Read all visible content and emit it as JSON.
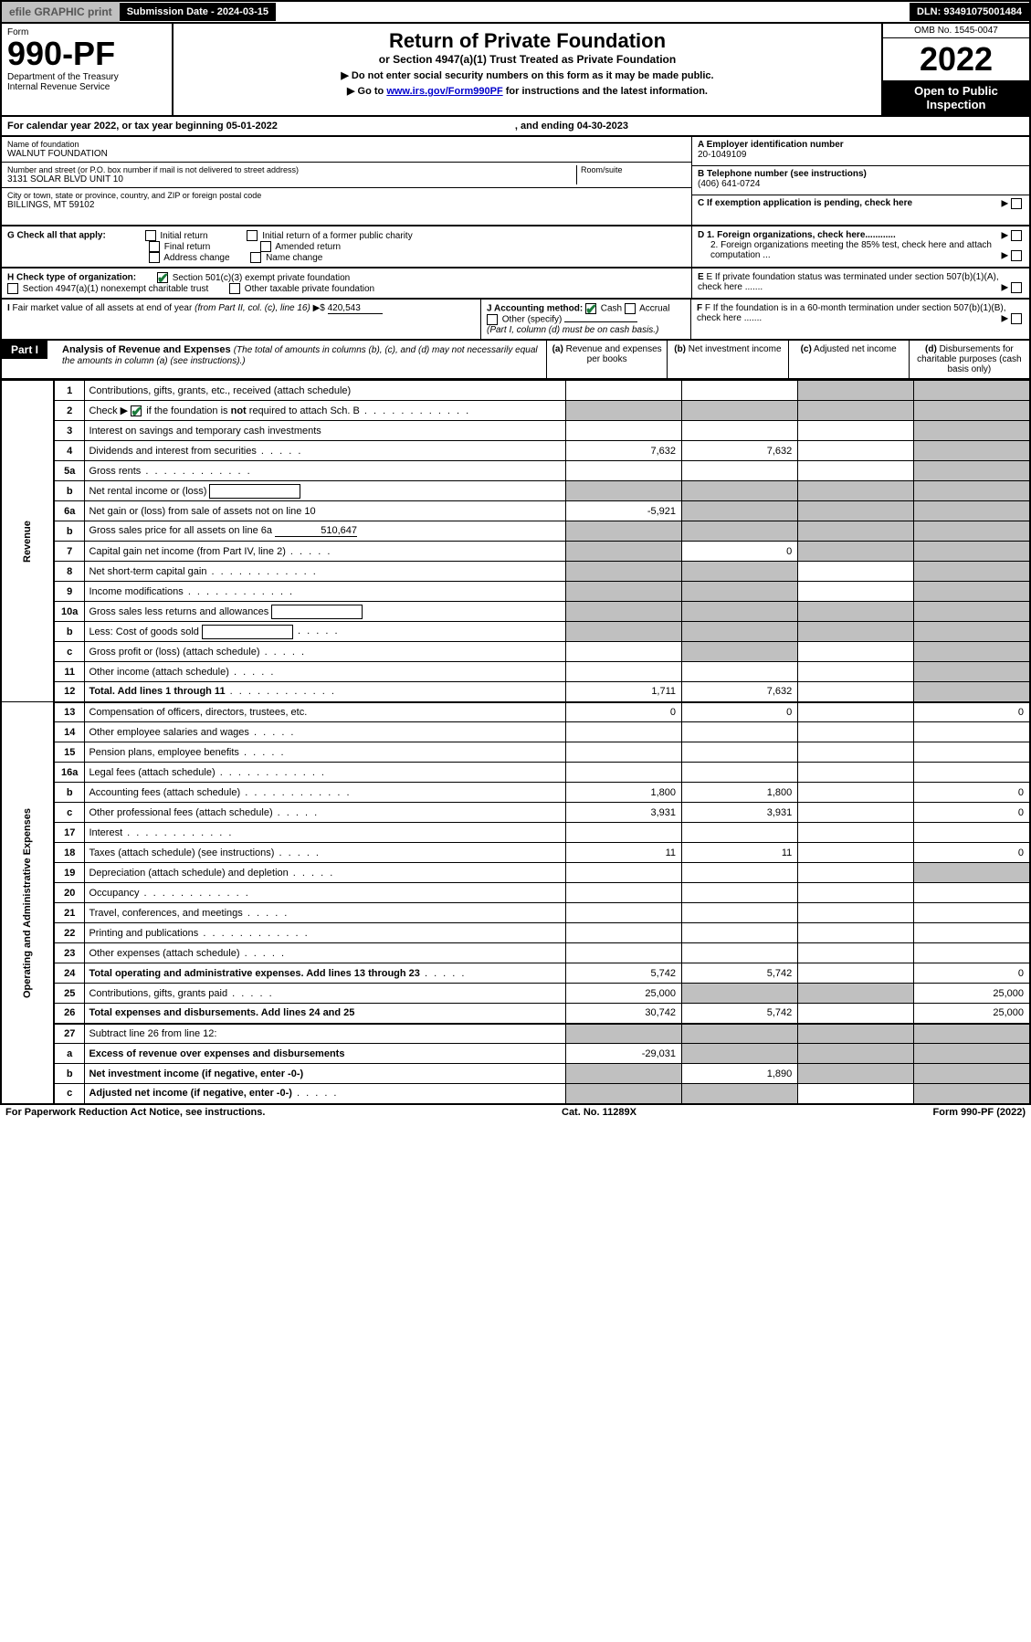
{
  "topbar": {
    "efile": "efile GRAPHIC print",
    "submission": "Submission Date - 2024-03-15",
    "dln": "DLN: 93491075001484"
  },
  "header": {
    "form_label": "Form",
    "form_number": "990-PF",
    "dept": "Department of the Treasury\nInternal Revenue Service",
    "title": "Return of Private Foundation",
    "subtitle": "or Section 4947(a)(1) Trust Treated as Private Foundation",
    "note1": "▶ Do not enter social security numbers on this form as it may be made public.",
    "note2_pre": "▶ Go to ",
    "note2_link": "www.irs.gov/Form990PF",
    "note2_post": " for instructions and the latest information.",
    "omb": "OMB No. 1545-0047",
    "year": "2022",
    "open": "Open to Public Inspection"
  },
  "cal_year": {
    "text": "For calendar year 2022, or tax year beginning 05-01-2022",
    "ending": ", and ending 04-30-2023"
  },
  "info": {
    "name_label": "Name of foundation",
    "name": "WALNUT FOUNDATION",
    "addr_label": "Number and street (or P.O. box number if mail is not delivered to street address)",
    "addr": "3131 SOLAR BLVD UNIT 10",
    "room_label": "Room/suite",
    "city_label": "City or town, state or province, country, and ZIP or foreign postal code",
    "city": "BILLINGS, MT  59102",
    "a_label": "A Employer identification number",
    "a_val": "20-1049109",
    "b_label": "B Telephone number (see instructions)",
    "b_val": "(406) 641-0724",
    "c_label": "C If exemption application is pending, check here"
  },
  "section_g": {
    "label": "G Check all that apply:",
    "o1": "Initial return",
    "o2": "Final return",
    "o3": "Address change",
    "o4": "Initial return of a former public charity",
    "o5": "Amended return",
    "o6": "Name change"
  },
  "section_d": {
    "d1": "D 1. Foreign organizations, check here............",
    "d2": "2. Foreign organizations meeting the 85% test, check here and attach computation ..."
  },
  "section_h": {
    "label": "H Check type of organization:",
    "o1": "Section 501(c)(3) exempt private foundation",
    "o2": "Section 4947(a)(1) nonexempt charitable trust",
    "o3": "Other taxable private foundation"
  },
  "section_e": {
    "text": "E  If private foundation status was terminated under section 507(b)(1)(A), check here ......."
  },
  "section_i": {
    "label": "I Fair market value of all assets at end of year (from Part II, col. (c), line 16) ▶$",
    "value": "420,543"
  },
  "section_j": {
    "label": "J Accounting method:",
    "cash": "Cash",
    "accrual": "Accrual",
    "other": "Other (specify)",
    "note": "(Part I, column (d) must be on cash basis.)"
  },
  "section_f": {
    "text": "F  If the foundation is in a 60-month termination under section 507(b)(1)(B), check here ......."
  },
  "part1": {
    "title": "Part I",
    "heading": "Analysis of Revenue and Expenses",
    "heading_note": "(The total of amounts in columns (b), (c), and (d) may not necessarily equal the amounts in column (a) (see instructions).)",
    "col_a": "(a) Revenue and expenses per books",
    "col_b": "(b) Net investment income",
    "col_c": "(c) Adjusted net income",
    "col_d": "(d) Disbursements for charitable purposes (cash basis only)"
  },
  "side_labels": {
    "revenue": "Revenue",
    "expenses": "Operating and Administrative Expenses"
  },
  "rows": [
    {
      "n": "1",
      "d": "Contributions, gifts, grants, etc., received (attach schedule)",
      "a": "",
      "b": "",
      "c": "g",
      "dd": "g"
    },
    {
      "n": "2",
      "d": "Check ▶ ☑ if the foundation is not required to attach Sch. B",
      "dots": true,
      "a": "g",
      "b": "g",
      "c": "g",
      "dd": "g"
    },
    {
      "n": "3",
      "d": "Interest on savings and temporary cash investments",
      "a": "",
      "b": "",
      "c": "",
      "dd": "g"
    },
    {
      "n": "4",
      "d": "Dividends and interest from securities",
      "dots": "short",
      "a": "7,632",
      "b": "7,632",
      "c": "",
      "dd": "g"
    },
    {
      "n": "5a",
      "d": "Gross rents",
      "dots": true,
      "a": "",
      "b": "",
      "c": "",
      "dd": "g"
    },
    {
      "n": "b",
      "d": "Net rental income or (loss)",
      "box": true,
      "a": "g",
      "b": "g",
      "c": "g",
      "dd": "g"
    },
    {
      "n": "6a",
      "d": "Net gain or (loss) from sale of assets not on line 10",
      "a": "-5,921",
      "b": "g",
      "c": "g",
      "dd": "g"
    },
    {
      "n": "b",
      "d": "Gross sales price for all assets on line 6a",
      "underline": "510,647",
      "a": "g",
      "b": "g",
      "c": "g",
      "dd": "g"
    },
    {
      "n": "7",
      "d": "Capital gain net income (from Part IV, line 2)",
      "dots": "short",
      "a": "g",
      "b": "0",
      "c": "g",
      "dd": "g"
    },
    {
      "n": "8",
      "d": "Net short-term capital gain",
      "dots": true,
      "a": "g",
      "b": "g",
      "c": "",
      "dd": "g"
    },
    {
      "n": "9",
      "d": "Income modifications",
      "dots": true,
      "a": "g",
      "b": "g",
      "c": "",
      "dd": "g"
    },
    {
      "n": "10a",
      "d": "Gross sales less returns and allowances",
      "box": true,
      "a": "g",
      "b": "g",
      "c": "g",
      "dd": "g"
    },
    {
      "n": "b",
      "d": "Less: Cost of goods sold",
      "dots": "short",
      "box": true,
      "a": "g",
      "b": "g",
      "c": "g",
      "dd": "g"
    },
    {
      "n": "c",
      "d": "Gross profit or (loss) (attach schedule)",
      "dots": "short",
      "a": "",
      "b": "g",
      "c": "",
      "dd": "g"
    },
    {
      "n": "11",
      "d": "Other income (attach schedule)",
      "dots": "short",
      "a": "",
      "b": "",
      "c": "",
      "dd": "g"
    },
    {
      "n": "12",
      "d": "Total. Add lines 1 through 11",
      "dots": true,
      "bold": true,
      "a": "1,711",
      "b": "7,632",
      "c": "",
      "dd": "g",
      "thick": true
    },
    {
      "n": "13",
      "d": "Compensation of officers, directors, trustees, etc.",
      "a": "0",
      "b": "0",
      "c": "",
      "dd": "0"
    },
    {
      "n": "14",
      "d": "Other employee salaries and wages",
      "dots": "short",
      "a": "",
      "b": "",
      "c": "",
      "dd": ""
    },
    {
      "n": "15",
      "d": "Pension plans, employee benefits",
      "dots": "short",
      "a": "",
      "b": "",
      "c": "",
      "dd": ""
    },
    {
      "n": "16a",
      "d": "Legal fees (attach schedule)",
      "dots": true,
      "a": "",
      "b": "",
      "c": "",
      "dd": ""
    },
    {
      "n": "b",
      "d": "Accounting fees (attach schedule)",
      "dots": true,
      "a": "1,800",
      "b": "1,800",
      "c": "",
      "dd": "0"
    },
    {
      "n": "c",
      "d": "Other professional fees (attach schedule)",
      "dots": "short",
      "a": "3,931",
      "b": "3,931",
      "c": "",
      "dd": "0"
    },
    {
      "n": "17",
      "d": "Interest",
      "dots": true,
      "a": "",
      "b": "",
      "c": "",
      "dd": ""
    },
    {
      "n": "18",
      "d": "Taxes (attach schedule) (see instructions)",
      "dots": "short",
      "a": "11",
      "b": "11",
      "c": "",
      "dd": "0"
    },
    {
      "n": "19",
      "d": "Depreciation (attach schedule) and depletion",
      "dots": "short",
      "a": "",
      "b": "",
      "c": "",
      "dd": "g"
    },
    {
      "n": "20",
      "d": "Occupancy",
      "dots": true,
      "a": "",
      "b": "",
      "c": "",
      "dd": ""
    },
    {
      "n": "21",
      "d": "Travel, conferences, and meetings",
      "dots": "short",
      "a": "",
      "b": "",
      "c": "",
      "dd": ""
    },
    {
      "n": "22",
      "d": "Printing and publications",
      "dots": true,
      "a": "",
      "b": "",
      "c": "",
      "dd": ""
    },
    {
      "n": "23",
      "d": "Other expenses (attach schedule)",
      "dots": "short",
      "a": "",
      "b": "",
      "c": "",
      "dd": ""
    },
    {
      "n": "24",
      "d": "Total operating and administrative expenses. Add lines 13 through 23",
      "dots": "short",
      "bold": true,
      "a": "5,742",
      "b": "5,742",
      "c": "",
      "dd": "0"
    },
    {
      "n": "25",
      "d": "Contributions, gifts, grants paid",
      "dots": "short",
      "a": "25,000",
      "b": "g",
      "c": "g",
      "dd": "25,000"
    },
    {
      "n": "26",
      "d": "Total expenses and disbursements. Add lines 24 and 25",
      "bold": true,
      "a": "30,742",
      "b": "5,742",
      "c": "",
      "dd": "25,000",
      "thick": true
    },
    {
      "n": "27",
      "d": "Subtract line 26 from line 12:",
      "a": "g",
      "b": "g",
      "c": "g",
      "dd": "g"
    },
    {
      "n": "a",
      "d": "Excess of revenue over expenses and disbursements",
      "bold": true,
      "a": "-29,031",
      "b": "g",
      "c": "g",
      "dd": "g"
    },
    {
      "n": "b",
      "d": "Net investment income (if negative, enter -0-)",
      "bold": true,
      "a": "g",
      "b": "1,890",
      "c": "g",
      "dd": "g"
    },
    {
      "n": "c",
      "d": "Adjusted net income (if negative, enter -0-)",
      "dots": "short",
      "bold": true,
      "a": "g",
      "b": "g",
      "c": "",
      "dd": "g"
    }
  ],
  "footer": {
    "left": "For Paperwork Reduction Act Notice, see instructions.",
    "mid": "Cat. No. 11289X",
    "right": "Form 990-PF (2022)"
  }
}
